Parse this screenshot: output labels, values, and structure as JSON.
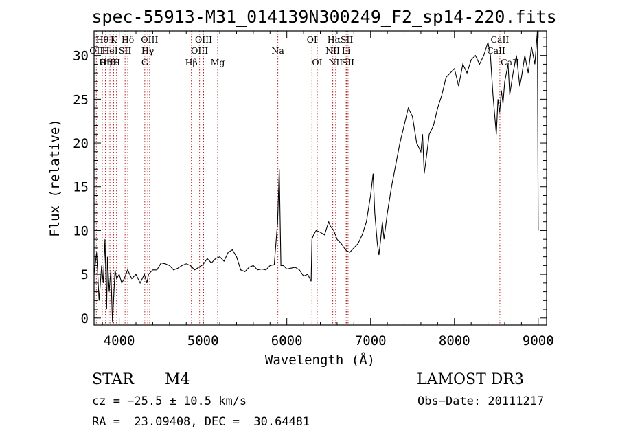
{
  "chart_data": {
    "type": "line",
    "title": "spec-55913-M31_014139N300249_F2_sp14-220.fits",
    "xlabel": "Wavelength (Å)",
    "ylabel": "Flux (relative)",
    "xlim": [
      3700,
      9100
    ],
    "ylim": [
      -0.8,
      32.8
    ],
    "x_ticks": [
      4000,
      5000,
      6000,
      7000,
      8000,
      9000
    ],
    "y_ticks": [
      0,
      5,
      10,
      15,
      20,
      25,
      30
    ],
    "spectrum_color": "#000000",
    "line_marker_color": "#b22222",
    "series": [
      {
        "name": "flux",
        "x": [
          3700,
          3730,
          3760,
          3790,
          3810,
          3830,
          3850,
          3860,
          3880,
          3900,
          3920,
          3950,
          3970,
          4000,
          4030,
          4060,
          4100,
          4150,
          4200,
          4250,
          4300,
          4330,
          4350,
          4400,
          4450,
          4500,
          4550,
          4600,
          4650,
          4700,
          4750,
          4800,
          4850,
          4900,
          4950,
          5000,
          5050,
          5100,
          5150,
          5200,
          5250,
          5300,
          5350,
          5400,
          5450,
          5500,
          5550,
          5600,
          5650,
          5700,
          5750,
          5800,
          5850,
          5890,
          5910,
          5930,
          5960,
          6000,
          6050,
          6100,
          6150,
          6200,
          6250,
          6290,
          6300,
          6320,
          6350,
          6400,
          6450,
          6500,
          6520,
          6560,
          6600,
          6650,
          6700,
          6750,
          6800,
          6850,
          6900,
          6950,
          7000,
          7030,
          7050,
          7080,
          7100,
          7120,
          7140,
          7160,
          7200,
          7250,
          7300,
          7350,
          7400,
          7450,
          7500,
          7550,
          7600,
          7620,
          7640,
          7660,
          7700,
          7750,
          7800,
          7850,
          7900,
          7950,
          8000,
          8050,
          8100,
          8150,
          8200,
          8250,
          8300,
          8350,
          8400,
          8430,
          8460,
          8500,
          8520,
          8540,
          8560,
          8580,
          8600,
          8640,
          8660,
          8700,
          8740,
          8780,
          8800,
          8840,
          8880,
          8920,
          8960,
          8990,
          9000
        ],
        "y": [
          5,
          7.5,
          2,
          6,
          4,
          9,
          1,
          7,
          3,
          5.5,
          -0.5,
          5.5,
          4.5,
          5,
          4,
          4.5,
          5.5,
          4.5,
          5,
          4,
          5,
          4,
          5,
          5.5,
          5.5,
          6.3,
          6.2,
          6,
          5.5,
          5.7,
          6,
          6.2,
          6,
          5.5,
          5.8,
          6.1,
          6.8,
          6.3,
          6.8,
          7,
          6.5,
          7.5,
          7.8,
          7,
          5.5,
          5.3,
          5.8,
          6,
          5.5,
          5.6,
          5.5,
          6,
          6.1,
          11,
          17,
          6,
          6,
          5.6,
          5.7,
          5.8,
          5.5,
          4.8,
          5,
          4.2,
          9,
          9.5,
          10,
          9.8,
          9.5,
          11,
          10.5,
          10,
          9,
          8.5,
          7.8,
          7.5,
          8,
          8.5,
          9.5,
          11,
          14,
          16.5,
          12,
          8.5,
          7.2,
          9,
          11,
          9,
          12,
          15,
          17.5,
          20,
          22,
          24,
          23,
          20,
          19,
          21,
          16.5,
          18,
          21,
          22,
          24,
          25.5,
          27.5,
          28,
          28.5,
          26.5,
          29,
          28,
          29.5,
          30,
          29,
          30,
          31.5,
          30,
          25.5,
          21,
          25,
          23.5,
          26,
          24.5,
          27,
          29,
          25.5,
          28,
          30,
          26.5,
          27.5,
          30,
          28,
          31,
          29,
          33,
          10
        ]
      }
    ],
    "spectral_lines": [
      {
        "label": "Hθ",
        "wavelength": 3798,
        "row": 1
      },
      {
        "label": "OII",
        "wavelength": 3727,
        "row": 2
      },
      {
        "label": "OIII",
        "wavelength": 3869,
        "row": 3
      },
      {
        "label": "K",
        "wavelength": 3934,
        "row": 1
      },
      {
        "label": "HeI",
        "wavelength": 3889,
        "row": 2
      },
      {
        "label": "Hη",
        "wavelength": 3835,
        "row": 3
      },
      {
        "label": "H",
        "wavelength": 3968,
        "row": 3
      },
      {
        "label": "SII",
        "wavelength": 4070,
        "row": 2
      },
      {
        "label": "Hδ",
        "wavelength": 4102,
        "row": 1
      },
      {
        "label": "OIII",
        "wavelength": 4363,
        "row": 1
      },
      {
        "label": "Hγ",
        "wavelength": 4340,
        "row": 2
      },
      {
        "label": "G",
        "wavelength": 4305,
        "row": 3
      },
      {
        "label": "OIII",
        "wavelength": 5007,
        "row": 1
      },
      {
        "label": "OIII",
        "wavelength": 4959,
        "row": 2
      },
      {
        "label": "Hβ",
        "wavelength": 4861,
        "row": 3
      },
      {
        "label": "Mg",
        "wavelength": 5175,
        "row": 3
      },
      {
        "label": "Na",
        "wavelength": 5893,
        "row": 2
      },
      {
        "label": "OI",
        "wavelength": 6300,
        "row": 1
      },
      {
        "label": "OI",
        "wavelength": 6363,
        "row": 3
      },
      {
        "label": "Hα",
        "wavelength": 6563,
        "row": 1
      },
      {
        "label": "SII",
        "wavelength": 6716,
        "row": 1
      },
      {
        "label": "NII",
        "wavelength": 6548,
        "row": 2
      },
      {
        "label": "Li",
        "wavelength": 6708,
        "row": 2
      },
      {
        "label": "NII",
        "wavelength": 6583,
        "row": 3
      },
      {
        "label": "SII",
        "wavelength": 6731,
        "row": 3
      },
      {
        "label": "CaII",
        "wavelength": 8542,
        "row": 1
      },
      {
        "label": "CaII",
        "wavelength": 8498,
        "row": 2
      },
      {
        "label": "CaII",
        "wavelength": 8662,
        "row": 3
      }
    ]
  },
  "info": {
    "object_class": "STAR",
    "subclass": "M4",
    "survey": "LAMOST DR3",
    "redshift": "cz = −25.5 ± 10.5 km/s",
    "obs_date": "Obs−Date: 20111217",
    "coords": "RA =  23.09408, DEC =  30.64481"
  }
}
